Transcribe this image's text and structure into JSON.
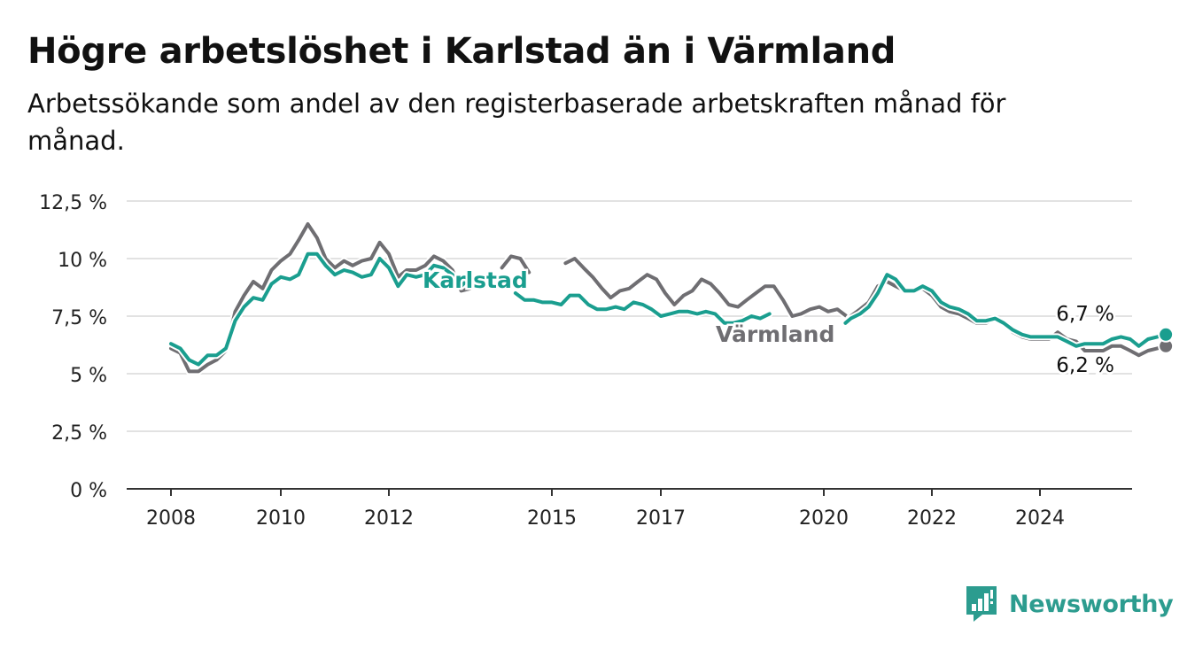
{
  "title": "Högre arbetslöshet i Karlstad än i Värmland",
  "subtitle": "Arbetssökande som andel av den registerbaserade arbetskraften månad för månad.",
  "brand": {
    "name": "Newsworthy",
    "icon": "newsworthy-logo-icon",
    "color": "#2c9c8f"
  },
  "chart_data": {
    "type": "line",
    "title": "Högre arbetslöshet i Karlstad än i Värmland",
    "subtitle": "Arbetssökande som andel av den registerbaserade arbetskraften månad för månad.",
    "xlabel": "",
    "ylabel": "",
    "xlim": [
      2007.5,
      2025.5
    ],
    "ylim": [
      0,
      12.5
    ],
    "x_ticks": [
      {
        "value": 2008,
        "label": "2008"
      },
      {
        "value": 2010,
        "label": "2010"
      },
      {
        "value": 2012,
        "label": "2012"
      },
      {
        "value": 2015,
        "label": "2015"
      },
      {
        "value": 2017,
        "label": "2017"
      },
      {
        "value": 2020,
        "label": "2020"
      },
      {
        "value": 2022,
        "label": "2022"
      },
      {
        "value": 2024,
        "label": "2024"
      }
    ],
    "y_ticks": [
      {
        "value": 0,
        "label": "0 %"
      },
      {
        "value": 2.5,
        "label": "2,5 %"
      },
      {
        "value": 5,
        "label": "5 %"
      },
      {
        "value": 7.5,
        "label": "7,5 %"
      },
      {
        "value": 10,
        "label": "10 %"
      },
      {
        "value": 12.5,
        "label": "12,5 %"
      }
    ],
    "grid": true,
    "legend": "inline labels",
    "series": [
      {
        "name": "Karlstad",
        "color": "#1a9e8f",
        "segments": [
          [
            [
              2008.0,
              6.3
            ],
            [
              2008.17,
              6.1
            ],
            [
              2008.33,
              5.6
            ],
            [
              2008.5,
              5.4
            ],
            [
              2008.67,
              5.8
            ],
            [
              2008.83,
              5.8
            ],
            [
              2009.0,
              6.1
            ],
            [
              2009.17,
              7.3
            ],
            [
              2009.33,
              7.9
            ],
            [
              2009.5,
              8.3
            ],
            [
              2009.67,
              8.2
            ],
            [
              2009.83,
              8.9
            ],
            [
              2010.0,
              9.2
            ],
            [
              2010.17,
              9.1
            ],
            [
              2010.33,
              9.3
            ],
            [
              2010.5,
              10.2
            ],
            [
              2010.67,
              10.2
            ],
            [
              2010.83,
              9.7
            ],
            [
              2011.0,
              9.3
            ],
            [
              2011.17,
              9.5
            ],
            [
              2011.33,
              9.4
            ],
            [
              2011.5,
              9.2
            ],
            [
              2011.67,
              9.3
            ],
            [
              2011.83,
              10.0
            ],
            [
              2012.0,
              9.6
            ],
            [
              2012.17,
              8.8
            ],
            [
              2012.33,
              9.3
            ],
            [
              2012.5,
              9.2
            ],
            [
              2012.67,
              9.3
            ],
            [
              2012.83,
              9.7
            ],
            [
              2013.0,
              9.6
            ],
            [
              2013.17,
              9.3
            ],
            [
              2013.33,
              8.8
            ],
            [
              2013.5,
              9.2
            ]
          ],
          [
            [
              2014.33,
              8.5
            ],
            [
              2014.5,
              8.2
            ],
            [
              2014.67,
              8.2
            ],
            [
              2014.83,
              8.1
            ],
            [
              2015.0,
              8.1
            ],
            [
              2015.17,
              8.0
            ],
            [
              2015.33,
              8.4
            ],
            [
              2015.5,
              8.4
            ],
            [
              2015.67,
              8.0
            ],
            [
              2015.83,
              7.8
            ],
            [
              2016.0,
              7.8
            ],
            [
              2016.17,
              7.9
            ],
            [
              2016.33,
              7.8
            ],
            [
              2016.5,
              8.1
            ],
            [
              2016.67,
              8.0
            ],
            [
              2016.83,
              7.8
            ],
            [
              2017.0,
              7.5
            ],
            [
              2017.17,
              7.6
            ],
            [
              2017.33,
              7.7
            ],
            [
              2017.5,
              7.7
            ],
            [
              2017.67,
              7.6
            ],
            [
              2017.83,
              7.7
            ],
            [
              2018.0,
              7.6
            ],
            [
              2018.17,
              7.2
            ],
            [
              2018.33,
              7.2
            ],
            [
              2018.5,
              7.3
            ],
            [
              2018.67,
              7.5
            ],
            [
              2018.83,
              7.4
            ],
            [
              2019.0,
              7.6
            ]
          ],
          [
            [
              2020.4,
              7.2
            ],
            [
              2020.5,
              7.4
            ],
            [
              2020.67,
              7.6
            ],
            [
              2020.83,
              7.9
            ],
            [
              2021.0,
              8.5
            ],
            [
              2021.17,
              9.3
            ],
            [
              2021.33,
              9.1
            ],
            [
              2021.5,
              8.6
            ],
            [
              2021.67,
              8.6
            ],
            [
              2021.83,
              8.8
            ],
            [
              2022.0,
              8.6
            ],
            [
              2022.17,
              8.1
            ],
            [
              2022.33,
              7.9
            ],
            [
              2022.5,
              7.8
            ],
            [
              2022.67,
              7.6
            ],
            [
              2022.83,
              7.3
            ],
            [
              2023.0,
              7.3
            ],
            [
              2023.17,
              7.4
            ],
            [
              2023.33,
              7.2
            ],
            [
              2023.5,
              6.9
            ],
            [
              2023.67,
              6.7
            ],
            [
              2023.83,
              6.6
            ],
            [
              2024.0,
              6.6
            ],
            [
              2024.17,
              6.6
            ],
            [
              2024.33,
              6.6
            ],
            [
              2024.5,
              6.4
            ],
            [
              2024.67,
              6.2
            ],
            [
              2024.83,
              6.3
            ],
            [
              2025.0,
              6.3
            ],
            [
              2025.17,
              6.3
            ],
            [
              2025.33,
              6.5
            ],
            [
              2025.5,
              6.6
            ],
            [
              2025.67,
              6.5
            ],
            [
              2025.83,
              6.2
            ],
            [
              2026.0,
              6.5
            ],
            [
              2026.17,
              6.6
            ],
            [
              2026.33,
              6.7
            ]
          ]
        ]
      },
      {
        "name": "Värmland",
        "color": "#6f6e72",
        "segments": [
          [
            [
              2008.0,
              6.1
            ],
            [
              2008.17,
              5.9
            ],
            [
              2008.33,
              5.1
            ],
            [
              2008.5,
              5.1
            ],
            [
              2008.67,
              5.4
            ],
            [
              2008.83,
              5.6
            ],
            [
              2009.0,
              6.0
            ],
            [
              2009.17,
              7.7
            ],
            [
              2009.33,
              8.4
            ],
            [
              2009.5,
              9.0
            ],
            [
              2009.67,
              8.7
            ],
            [
              2009.83,
              9.5
            ],
            [
              2010.0,
              9.9
            ],
            [
              2010.17,
              10.2
            ],
            [
              2010.33,
              10.8
            ],
            [
              2010.5,
              11.5
            ],
            [
              2010.67,
              10.9
            ],
            [
              2010.83,
              10.0
            ],
            [
              2011.0,
              9.6
            ],
            [
              2011.17,
              9.9
            ],
            [
              2011.33,
              9.7
            ],
            [
              2011.5,
              9.9
            ],
            [
              2011.67,
              10.0
            ],
            [
              2011.83,
              10.7
            ],
            [
              2012.0,
              10.2
            ],
            [
              2012.17,
              9.2
            ],
            [
              2012.33,
              9.5
            ],
            [
              2012.5,
              9.5
            ],
            [
              2012.67,
              9.7
            ],
            [
              2012.83,
              10.1
            ],
            [
              2013.0,
              9.9
            ],
            [
              2013.17,
              9.5
            ],
            [
              2013.33,
              8.6
            ],
            [
              2013.5,
              8.7
            ]
          ],
          [
            [
              2014.08,
              9.6
            ],
            [
              2014.25,
              10.1
            ],
            [
              2014.42,
              10.0
            ],
            [
              2014.58,
              9.4
            ]
          ],
          [
            [
              2015.25,
              9.8
            ],
            [
              2015.42,
              10.0
            ],
            [
              2015.58,
              9.6
            ],
            [
              2015.75,
              9.2
            ],
            [
              2015.92,
              8.7
            ],
            [
              2016.08,
              8.3
            ],
            [
              2016.25,
              8.6
            ],
            [
              2016.42,
              8.7
            ],
            [
              2016.58,
              9.0
            ],
            [
              2016.75,
              9.3
            ],
            [
              2016.92,
              9.1
            ],
            [
              2017.08,
              8.5
            ],
            [
              2017.25,
              8.0
            ],
            [
              2017.42,
              8.4
            ],
            [
              2017.58,
              8.6
            ],
            [
              2017.75,
              9.1
            ],
            [
              2017.92,
              8.9
            ],
            [
              2018.08,
              8.5
            ],
            [
              2018.25,
              8.0
            ],
            [
              2018.42,
              7.9
            ],
            [
              2018.58,
              8.2
            ],
            [
              2018.75,
              8.5
            ],
            [
              2018.92,
              8.8
            ],
            [
              2019.08,
              8.8
            ],
            [
              2019.25,
              8.2
            ],
            [
              2019.42,
              7.5
            ],
            [
              2019.58,
              7.6
            ],
            [
              2019.75,
              7.8
            ],
            [
              2019.92,
              7.9
            ],
            [
              2020.08,
              7.7
            ],
            [
              2020.25,
              7.8
            ],
            [
              2020.42,
              7.5
            ]
          ],
          [
            [
              2020.4,
              7.2
            ],
            [
              2020.5,
              7.5
            ],
            [
              2020.67,
              7.8
            ],
            [
              2020.83,
              8.1
            ],
            [
              2021.0,
              8.8
            ],
            [
              2021.17,
              9.0
            ],
            [
              2021.33,
              8.8
            ],
            [
              2021.5,
              8.6
            ],
            [
              2021.67,
              8.6
            ],
            [
              2021.83,
              8.7
            ],
            [
              2022.0,
              8.4
            ],
            [
              2022.17,
              7.9
            ],
            [
              2022.33,
              7.7
            ],
            [
              2022.5,
              7.6
            ],
            [
              2022.67,
              7.4
            ],
            [
              2022.83,
              7.2
            ],
            [
              2023.0,
              7.2
            ],
            [
              2023.17,
              7.4
            ],
            [
              2023.33,
              7.2
            ],
            [
              2023.5,
              6.8
            ],
            [
              2023.67,
              6.6
            ],
            [
              2023.83,
              6.5
            ],
            [
              2024.0,
              6.5
            ],
            [
              2024.17,
              6.5
            ],
            [
              2024.33,
              6.8
            ],
            [
              2024.5,
              6.5
            ],
            [
              2024.67,
              6.4
            ],
            [
              2024.83,
              6.0
            ],
            [
              2025.0,
              6.0
            ],
            [
              2025.17,
              6.0
            ],
            [
              2025.33,
              6.2
            ],
            [
              2025.5,
              6.2
            ],
            [
              2025.67,
              6.0
            ],
            [
              2025.83,
              5.8
            ],
            [
              2026.0,
              6.0
            ],
            [
              2026.17,
              6.1
            ],
            [
              2026.33,
              6.2
            ]
          ]
        ]
      }
    ],
    "series_labels": [
      {
        "series": "Karlstad",
        "text": "Karlstad"
      },
      {
        "series": "Värmland",
        "text": "Värmland"
      }
    ],
    "end_labels": [
      {
        "series": "Karlstad",
        "text": "6,7 %",
        "value": 6.7
      },
      {
        "series": "Värmland",
        "text": "6,2 %",
        "value": 6.2
      }
    ]
  }
}
